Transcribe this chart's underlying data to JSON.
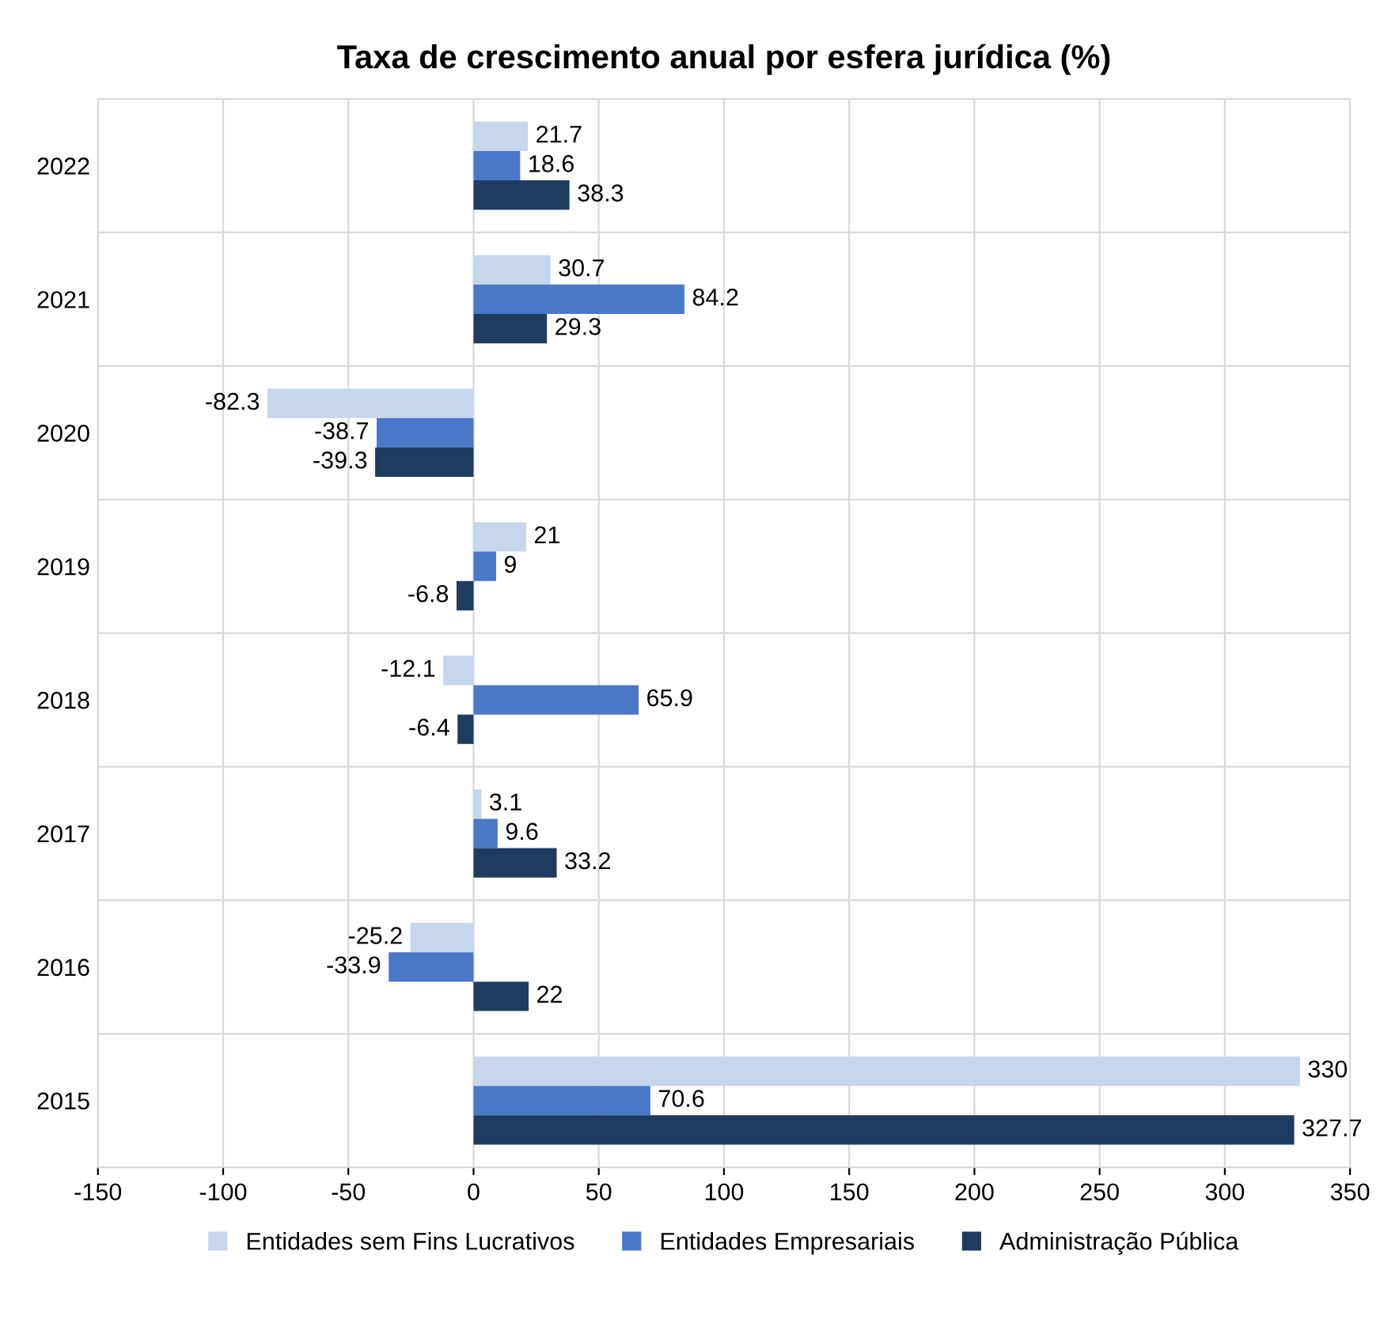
{
  "chart_data": {
    "type": "bar",
    "orientation": "horizontal",
    "title": "Taxa de crescimento anual por esfera jurídica (%)",
    "categories": [
      "2022",
      "2021",
      "2020",
      "2019",
      "2018",
      "2017",
      "2016",
      "2015"
    ],
    "series": [
      {
        "name": "Entidades sem Fins Lucrativos",
        "color": "#c6d6ec",
        "values": [
          21.7,
          30.7,
          -82.3,
          21,
          -12.1,
          3.1,
          -25.2,
          330
        ]
      },
      {
        "name": "Entidades Empresariais",
        "color": "#4a78c8",
        "values": [
          18.6,
          84.2,
          -38.7,
          9,
          65.9,
          9.6,
          -33.9,
          70.6
        ]
      },
      {
        "name": "Administração Pública",
        "color": "#1f3b60",
        "values": [
          38.3,
          29.3,
          -39.3,
          -6.8,
          -6.4,
          33.2,
          22,
          327.7
        ]
      }
    ],
    "xlim": [
      -150,
      350
    ],
    "xticks": [
      -150,
      -100,
      -50,
      0,
      50,
      100,
      150,
      200,
      250,
      300,
      350
    ],
    "grid": true,
    "legend": "bottom",
    "data_labels": true
  }
}
